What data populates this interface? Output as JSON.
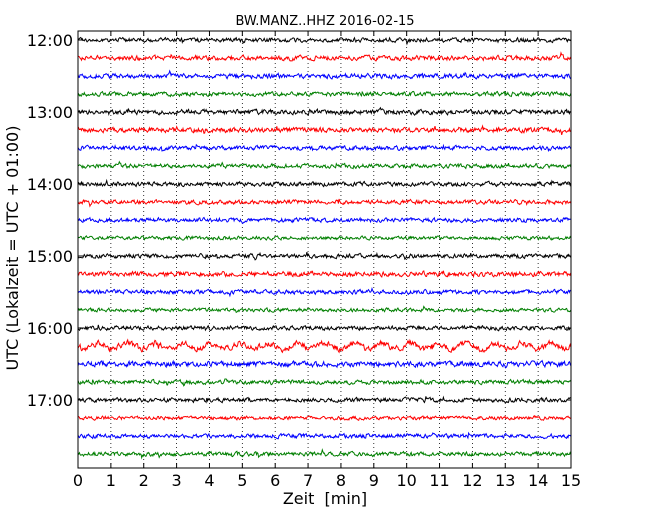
{
  "chart_data": {
    "type": "line",
    "title": "BW.MANZ..HHZ 2016-02-15",
    "xlabel": "Zeit  [min]",
    "ylabel": "UTC (Lokalzeit = UTC + 01:00)",
    "xlim": [
      0,
      15
    ],
    "x_ticks": [
      "0",
      "1",
      "2",
      "3",
      "4",
      "5",
      "6",
      "7",
      "8",
      "9",
      "10",
      "11",
      "12",
      "13",
      "14",
      "15"
    ],
    "y_ticks": [
      "12:00",
      "13:00",
      "14:00",
      "15:00",
      "16:00",
      "17:00"
    ],
    "grid": "vertical dotted",
    "trace_colors": [
      "#000000",
      "#ff0000",
      "#0000ff",
      "#007f00"
    ],
    "series": [
      {
        "start": "12:00",
        "color": "#000000",
        "amplitude": 0.35
      },
      {
        "start": "12:15",
        "color": "#ff0000",
        "amplitude": 0.4
      },
      {
        "start": "12:30",
        "color": "#0000ff",
        "amplitude": 0.4
      },
      {
        "start": "12:45",
        "color": "#007f00",
        "amplitude": 0.35
      },
      {
        "start": "13:00",
        "color": "#000000",
        "amplitude": 0.4
      },
      {
        "start": "13:15",
        "color": "#ff0000",
        "amplitude": 0.4
      },
      {
        "start": "13:30",
        "color": "#0000ff",
        "amplitude": 0.35
      },
      {
        "start": "13:45",
        "color": "#007f00",
        "amplitude": 0.35
      },
      {
        "start": "14:00",
        "color": "#000000",
        "amplitude": 0.35
      },
      {
        "start": "14:15",
        "color": "#ff0000",
        "amplitude": 0.35
      },
      {
        "start": "14:30",
        "color": "#0000ff",
        "amplitude": 0.35
      },
      {
        "start": "14:45",
        "color": "#007f00",
        "amplitude": 0.3
      },
      {
        "start": "15:00",
        "color": "#000000",
        "amplitude": 0.35
      },
      {
        "start": "15:15",
        "color": "#ff0000",
        "amplitude": 0.4
      },
      {
        "start": "15:30",
        "color": "#0000ff",
        "amplitude": 0.35
      },
      {
        "start": "15:45",
        "color": "#007f00",
        "amplitude": 0.3
      },
      {
        "start": "16:00",
        "color": "#000000",
        "amplitude": 0.35
      },
      {
        "start": "16:15",
        "color": "#ff0000",
        "amplitude": 0.5
      },
      {
        "start": "16:30",
        "color": "#0000ff",
        "amplitude": 0.45
      },
      {
        "start": "16:45",
        "color": "#007f00",
        "amplitude": 0.35
      },
      {
        "start": "17:00",
        "color": "#000000",
        "amplitude": 0.35
      },
      {
        "start": "17:15",
        "color": "#ff0000",
        "amplitude": 0.3
      },
      {
        "start": "17:30",
        "color": "#0000ff",
        "amplitude": 0.35
      },
      {
        "start": "17:45",
        "color": "#007f00",
        "amplitude": 0.35
      }
    ]
  }
}
